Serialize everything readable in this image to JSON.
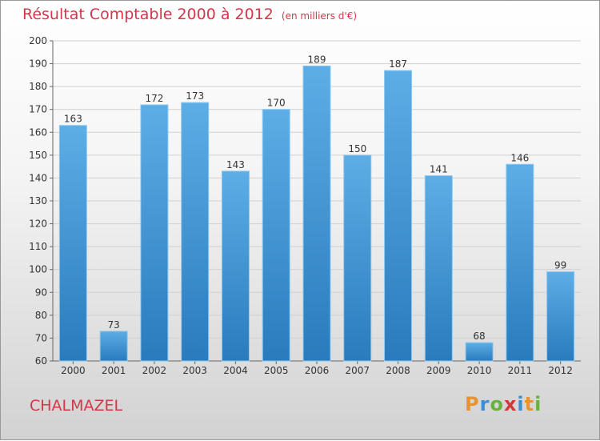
{
  "title": "Résultat Comptable 2000 à 2012",
  "subtitle": "(en milliers d'€)",
  "commune": "CHALMAZEL",
  "brand": {
    "text": "Proxiti",
    "letters": [
      {
        "ch": "P",
        "color": "#e8932f"
      },
      {
        "ch": "r",
        "color": "#3c8fd6"
      },
      {
        "ch": "o",
        "color": "#67b33b"
      },
      {
        "ch": "x",
        "color": "#d23a3a"
      },
      {
        "ch": "i",
        "color": "#3c8fd6"
      },
      {
        "ch": "t",
        "color": "#e8932f"
      },
      {
        "ch": "i",
        "color": "#67b33b"
      }
    ]
  },
  "colors": {
    "title": "#d2374a",
    "bar_top": "#5dade6",
    "bar_bottom": "#2a7bbd",
    "grid": "#d0d0d0",
    "axis_text": "#333333"
  },
  "chart_data": {
    "type": "bar",
    "title": "Résultat Comptable 2000 à 2012",
    "subtitle": "(en milliers d'€)",
    "categories": [
      "2000",
      "2001",
      "2002",
      "2003",
      "2004",
      "2005",
      "2006",
      "2007",
      "2008",
      "2009",
      "2010",
      "2011",
      "2012"
    ],
    "values": [
      163,
      73,
      172,
      173,
      143,
      170,
      189,
      150,
      187,
      141,
      68,
      146,
      99
    ],
    "ylim": [
      60,
      200
    ],
    "yticks": [
      60,
      70,
      80,
      90,
      100,
      110,
      120,
      130,
      140,
      150,
      160,
      170,
      180,
      190,
      200
    ],
    "xlabel": "",
    "ylabel": "",
    "grid": true,
    "legend": "none"
  }
}
